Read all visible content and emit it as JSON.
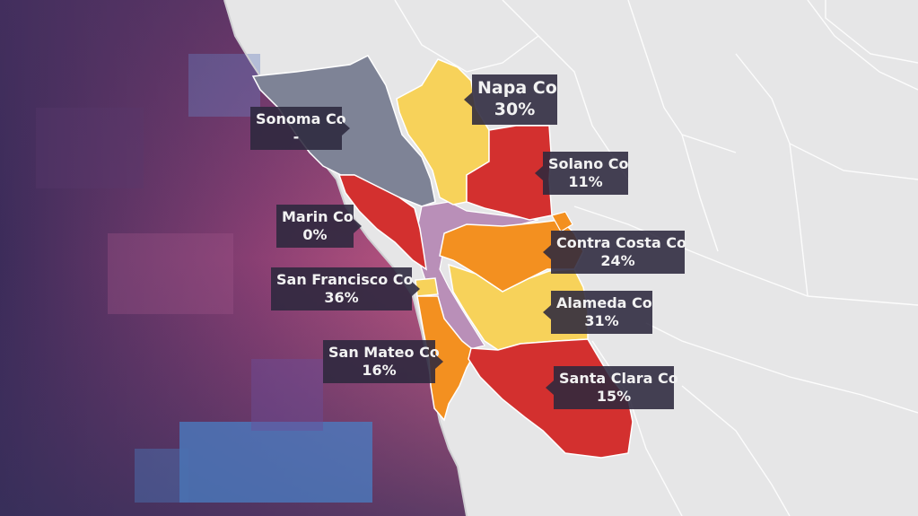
{
  "map": {
    "colors": {
      "ocean_dark": "#3c2c5a",
      "ocean_mid": "#b5507a",
      "ocean_blue": "#4a7fc4",
      "land": "#e6e6e7",
      "county_line": "#ffffff",
      "no_data": "#7e8396",
      "level_high": "#d3302f",
      "level_mid": "#f39020",
      "level_low": "#f7d25a",
      "water_bay": "#b98fb8"
    }
  },
  "counties": [
    {
      "id": "sonoma",
      "name": "Sonoma Co",
      "value": "-",
      "fill": "#7e8396"
    },
    {
      "id": "napa",
      "name": "Napa Co",
      "value": "30%",
      "fill": "#f7d25a"
    },
    {
      "id": "solano",
      "name": "Solano Co",
      "value": "11%",
      "fill": "#d3302f"
    },
    {
      "id": "marin",
      "name": "Marin Co",
      "value": "0%",
      "fill": "#d3302f"
    },
    {
      "id": "contra-costa",
      "name": "Contra Costa Co",
      "value": "24%",
      "fill": "#f39020"
    },
    {
      "id": "san-francisco",
      "name": "San Francisco Co",
      "value": "36%",
      "fill": "#f7d25a"
    },
    {
      "id": "alameda",
      "name": "Alameda Co",
      "value": "31%",
      "fill": "#f7d25a"
    },
    {
      "id": "san-mateo",
      "name": "San Mateo Co",
      "value": "16%",
      "fill": "#f39020"
    },
    {
      "id": "santa-clara",
      "name": "Santa Clara Co",
      "value": "15%",
      "fill": "#d3302f"
    }
  ]
}
